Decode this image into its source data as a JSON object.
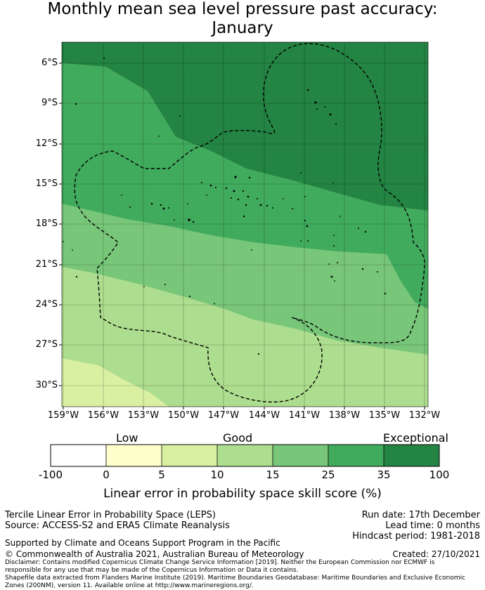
{
  "title": {
    "line1": "Monthly mean sea level pressure past accuracy:",
    "line2": "January"
  },
  "map": {
    "lat_ticks": [
      "6°S",
      "9°S",
      "12°S",
      "15°S",
      "18°S",
      "21°S",
      "24°S",
      "27°S",
      "30°S"
    ],
    "lon_ticks": [
      "159°W",
      "156°W",
      "153°W",
      "150°W",
      "147°W",
      "144°W",
      "141°W",
      "138°W",
      "135°W",
      "132°W"
    ],
    "lat_values": [
      -6,
      -9,
      -12,
      -15,
      -18,
      -21,
      -24,
      -27,
      -30
    ],
    "lon_values": [
      -159,
      -156,
      -153,
      -150,
      -147,
      -144,
      -141,
      -138,
      -135,
      -132
    ],
    "extent": {
      "lon_min": -159.1,
      "lon_max": -131.9,
      "lat_min": -31.6,
      "lat_max": -4.6
    }
  },
  "legend": {
    "categories": [
      "Low",
      "Good",
      "Exceptional"
    ],
    "ticks": [
      "-100",
      "0",
      "5",
      "10",
      "15",
      "25",
      "35",
      "100"
    ],
    "colors": [
      "#ffffff",
      "#ffffcc",
      "#d9f0a3",
      "#addd8e",
      "#78c679",
      "#41ab5d",
      "#238443"
    ],
    "label": "Linear error in probability space skill score (%)"
  },
  "info": {
    "method": "Tercile Linear Error in Probability Space (LEPS)",
    "source": "Source: ACCESS-S2 and ERA5 Climate Reanalysis",
    "run_date": "Run date: 17th December",
    "lead_time": "Lead time: 0 months",
    "hindcast": "Hindcast period: 1981-2018",
    "supported": "Supported by Climate and Oceans Support Program in the Pacific",
    "copyright": "© Commonwealth of Australia 2021, Australian Bureau of Meteorology",
    "created": "Created: 27/10/2021",
    "disclaimer1": "Disclaimer: Contains modified Copernicus Climate Change Service Information [2019]. Neither the European Commission nor ECMWF is",
    "disclaimer2": "responsible for any use that may be made of the Copernicus Information or Data it contains.",
    "disclaimer3": "Shapefile data extracted from Flanders Marine Institute (2019). Maritime Boundaries Geodatabase: Maritime Boundaries and Exclusive Economic",
    "disclaimer4": "Zones (200NM), version 11. Available online at http://www.marineregions.org/."
  }
}
